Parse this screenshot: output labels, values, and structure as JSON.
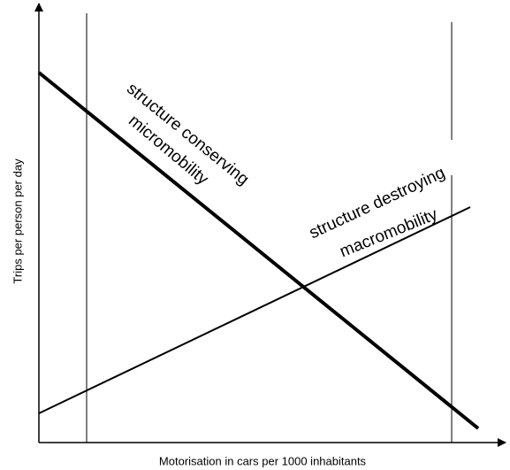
{
  "x_axis_label": "Motorisation in cars per 1000 inhabitants",
  "y_axis_label": "Trips per person per day",
  "lines": [
    {
      "label": [
        "structure conserving",
        "micromobility"
      ]
    },
    {
      "label": [
        "structure destroying",
        "macromobility"
      ]
    }
  ]
}
